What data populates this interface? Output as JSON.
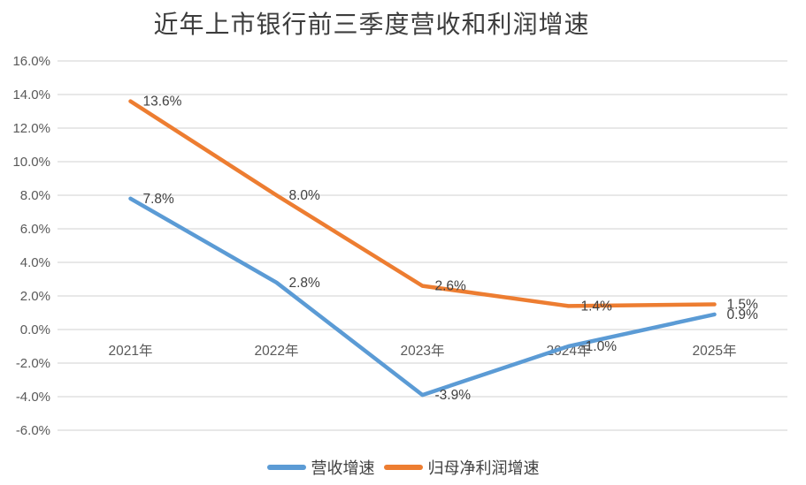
{
  "chart_data": {
    "type": "line",
    "title": "近年上市银行前三季度营收和利润增速",
    "categories": [
      "2021年",
      "2022年",
      "2023年",
      "2024年",
      "2025年"
    ],
    "series": [
      {
        "name": "营收增速",
        "color": "#5B9BD5",
        "values": [
          7.8,
          2.8,
          -3.9,
          -1.0,
          0.9
        ],
        "labels": [
          "7.8%",
          "2.8%",
          "-3.9%",
          "-1.0%",
          "0.9%"
        ]
      },
      {
        "name": "归母净利润增速",
        "color": "#ED7D31",
        "values": [
          13.6,
          8.0,
          2.6,
          1.4,
          1.5
        ],
        "labels": [
          "13.6%",
          "8.0%",
          "2.6%",
          "1.4%",
          "1.5%"
        ]
      }
    ],
    "y_axis": {
      "min": -6,
      "max": 16,
      "step": 2,
      "tick_labels": [
        "16.0%",
        "14.0%",
        "12.0%",
        "10.0%",
        "8.0%",
        "6.0%",
        "4.0%",
        "2.0%",
        "0.0%",
        "-2.0%",
        "-4.0%",
        "-6.0%"
      ]
    },
    "grid": true,
    "gridline_color": "#D9D9D9",
    "legend_position": "bottom"
  }
}
